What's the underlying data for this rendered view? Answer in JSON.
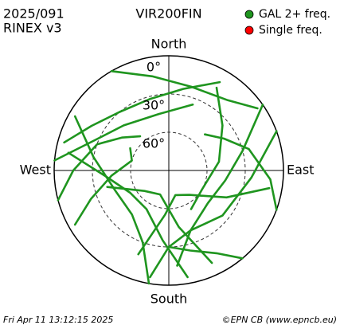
{
  "chart_data": {
    "type": "skyplot",
    "title": "VIR200FIN",
    "date": "2025/091",
    "format": "RINEX v3",
    "footer_left": "Fri Apr 11 13:12:15 2025",
    "footer_right": "©EPN CB (www.epncb.eu)",
    "rlim": [
      90,
      0
    ],
    "rticks": [
      {
        "value": 0,
        "label": "0°"
      },
      {
        "value": 30,
        "label": "30°"
      },
      {
        "value": 60,
        "label": "60°"
      }
    ],
    "directions": [
      {
        "value": 0,
        "label": "North"
      },
      {
        "value": 90,
        "label": "East"
      },
      {
        "value": 180,
        "label": "South"
      },
      {
        "value": 270,
        "label": "West"
      }
    ],
    "series": [
      {
        "name": "GAL 2+ freq.",
        "color": "#1f951f",
        "tracks": [
          {
            "az": [
              285,
              300,
              320,
              345,
              10,
              30
            ],
            "el": [
              5,
              20,
              30,
              32,
              25,
              10
            ]
          },
          {
            "az": [
              330,
              350,
              15,
              40,
              55
            ],
            "el": [
              0,
              15,
              22,
              18,
              5
            ]
          },
          {
            "az": [
              275,
              290,
              315,
              350,
              20
            ],
            "el": [
              0,
              25,
              40,
              45,
              35
            ]
          },
          {
            "az": [
              55,
              75,
              100,
              130,
              160,
              175
            ],
            "el": [
              0,
              30,
              45,
              50,
              40,
              15
            ]
          },
          {
            "az": [
              70,
              95,
              130,
              160,
              180,
              190
            ],
            "el": [
              0,
              25,
              35,
              40,
              30,
              5
            ]
          },
          {
            "az": [
              30,
              50,
              80,
              120,
              150
            ],
            "el": [
              15,
              35,
              50,
              60,
              55
            ]
          },
          {
            "az": [
              190,
              200,
              220,
              250,
              280,
              300
            ],
            "el": [
              0,
              30,
              45,
              45,
              30,
              5
            ]
          },
          {
            "az": [
              170,
              185,
              210,
              240,
              265,
              280
            ],
            "el": [
              5,
              35,
              55,
              55,
              40,
              10
            ]
          },
          {
            "az": [
              240,
              250,
              265,
              285,
              300
            ],
            "el": [
              5,
              25,
              45,
              60,
              55
            ]
          },
          {
            "az": [
              100,
              115,
              140,
              165,
              185,
              200
            ],
            "el": [
              10,
              40,
              65,
              70,
              55,
              20
            ]
          },
          {
            "az": [
              155,
              170,
              200,
              230,
              255
            ],
            "el": [
              10,
              45,
              70,
              65,
              40
            ]
          },
          {
            "az": [
              320,
              305,
              290,
              270,
              255
            ],
            "el": [
              55,
              45,
              30,
              15,
              0
            ]
          },
          {
            "az": [
              45,
              60,
              75,
              95,
              110
            ],
            "el": [
              50,
              40,
              25,
              10,
              0
            ]
          },
          {
            "az": [
              140,
              150,
              165,
              180
            ],
            "el": [
              0,
              15,
              25,
              30
            ]
          }
        ]
      },
      {
        "name": "Single freq.",
        "color": "#ff0000",
        "tracks": []
      }
    ]
  }
}
